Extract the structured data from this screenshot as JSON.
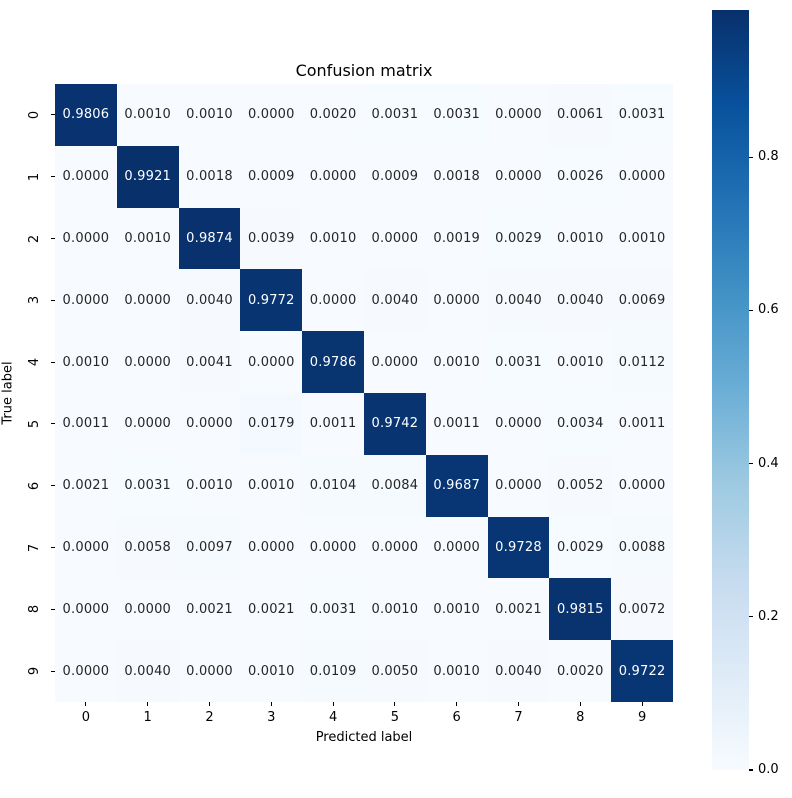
{
  "title": "Confusion matrix",
  "chart_data": {
    "type": "heatmap",
    "title": "Confusion matrix",
    "xlabel": "Predicted label",
    "ylabel": "True label",
    "x_ticklabels": [
      "0",
      "1",
      "2",
      "3",
      "4",
      "5",
      "6",
      "7",
      "8",
      "9"
    ],
    "y_ticklabels": [
      "0",
      "1",
      "2",
      "3",
      "4",
      "5",
      "6",
      "7",
      "8",
      "9"
    ],
    "matrix": [
      [
        0.9806,
        0.001,
        0.001,
        0.0,
        0.002,
        0.0031,
        0.0031,
        0.0,
        0.0061,
        0.0031
      ],
      [
        0.0,
        0.9921,
        0.0018,
        0.0009,
        0.0,
        0.0009,
        0.0018,
        0.0,
        0.0026,
        0.0
      ],
      [
        0.0,
        0.001,
        0.9874,
        0.0039,
        0.001,
        0.0,
        0.0019,
        0.0029,
        0.001,
        0.001
      ],
      [
        0.0,
        0.0,
        0.004,
        0.9772,
        0.0,
        0.004,
        0.0,
        0.004,
        0.004,
        0.0069
      ],
      [
        0.001,
        0.0,
        0.0041,
        0.0,
        0.9786,
        0.0,
        0.001,
        0.0031,
        0.001,
        0.0112
      ],
      [
        0.0011,
        0.0,
        0.0,
        0.0179,
        0.0011,
        0.9742,
        0.0011,
        0.0,
        0.0034,
        0.0011
      ],
      [
        0.0021,
        0.0031,
        0.001,
        0.001,
        0.0104,
        0.0084,
        0.9687,
        0.0,
        0.0052,
        0.0
      ],
      [
        0.0,
        0.0058,
        0.0097,
        0.0,
        0.0,
        0.0,
        0.0,
        0.9728,
        0.0029,
        0.0088
      ],
      [
        0.0,
        0.0,
        0.0021,
        0.0021,
        0.0031,
        0.001,
        0.001,
        0.0021,
        0.9815,
        0.0072
      ],
      [
        0.0,
        0.004,
        0.0,
        0.001,
        0.0109,
        0.005,
        0.001,
        0.004,
        0.002,
        0.9722
      ]
    ],
    "value_decimals": 4,
    "vmin": 0.0,
    "vmax": 0.9921,
    "colormap": "Blues",
    "colormap_anchors": [
      "#f7fbff",
      "#deebf7",
      "#c6dbef",
      "#9ecae1",
      "#6baed6",
      "#4292c6",
      "#2171b5",
      "#08519c",
      "#08306b"
    ],
    "annotation_color_dark_cells": "#ffffff",
    "annotation_color_light_cells": "#262626",
    "colorbar_ticks": [
      {
        "label": "0.0",
        "value": 0.0
      },
      {
        "label": "0.2",
        "value": 0.2
      },
      {
        "label": "0.4",
        "value": 0.4
      },
      {
        "label": "0.6",
        "value": 0.6
      },
      {
        "label": "0.8",
        "value": 0.8
      }
    ],
    "grid": false,
    "legend_position": "colorbar-right"
  }
}
